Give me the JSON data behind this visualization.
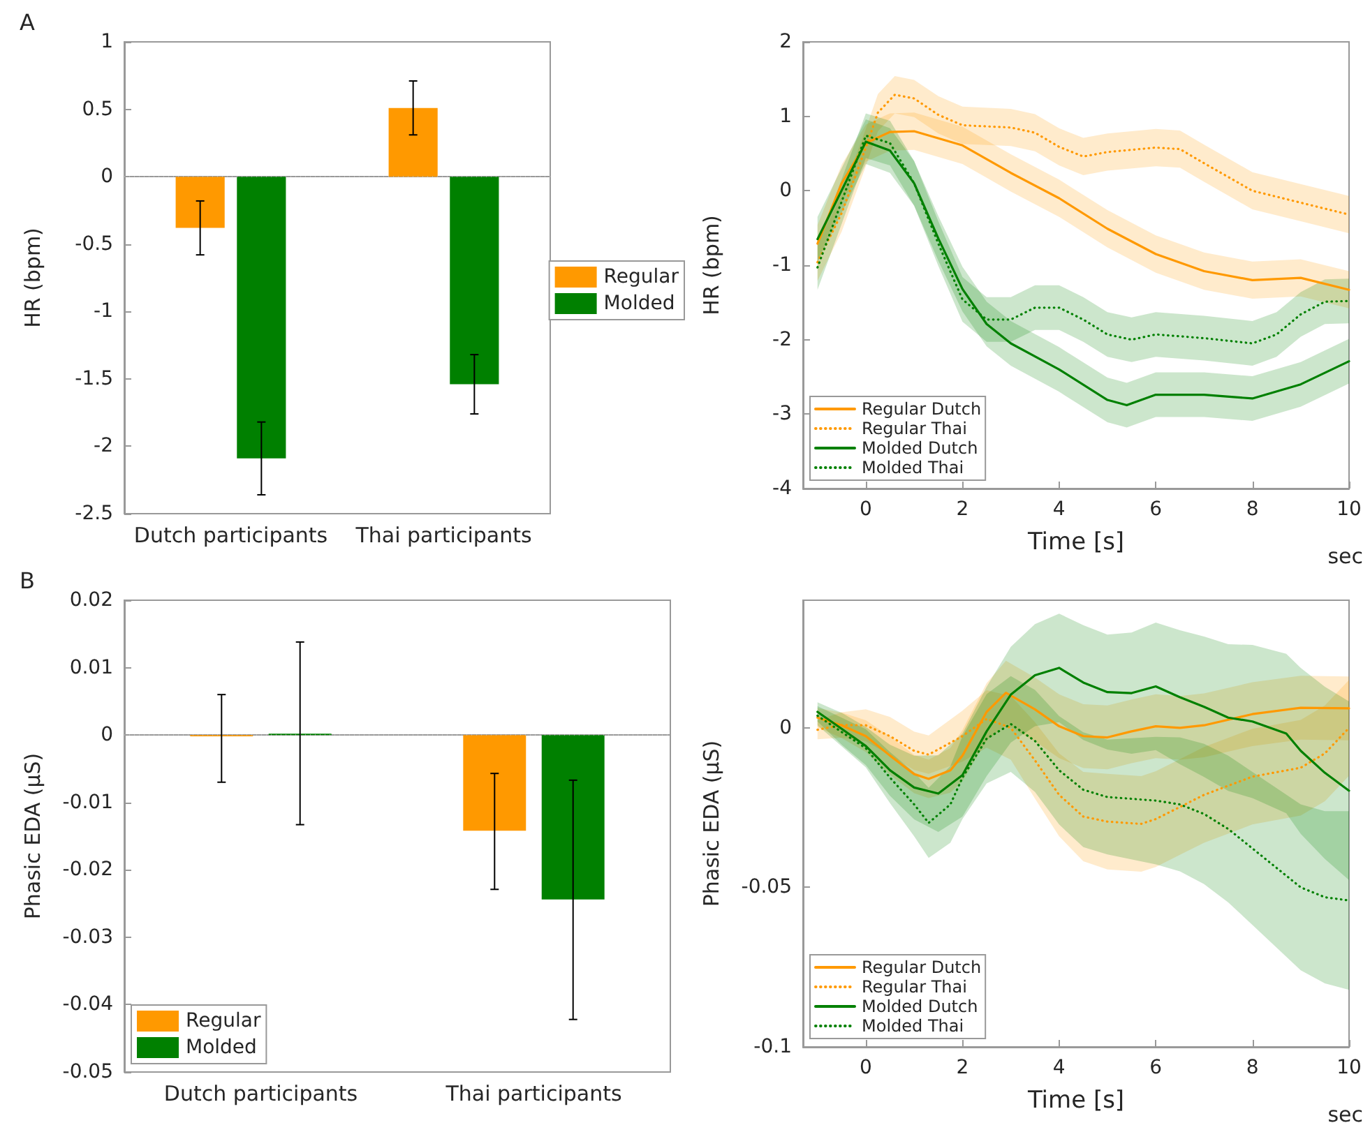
{
  "chart_data": [
    {
      "type": "bar",
      "ylabel": "HR (bpm)",
      "annotations": [
        "A"
      ],
      "categories": [
        "Dutch participants",
        "Thai participants"
      ],
      "series": [
        {
          "name": "Regular",
          "color": "#ff9900",
          "values": [
            -0.38,
            0.51
          ],
          "errors": [
            0.2,
            0.2
          ]
        },
        {
          "name": "Molded",
          "color": "#008000",
          "values": [
            -2.09,
            -1.54
          ],
          "errors": [
            0.27,
            0.22
          ]
        }
      ],
      "ylim": [
        -2.5,
        1
      ],
      "yticks": [
        -2.5,
        -2,
        -1.5,
        -1,
        -0.5,
        0,
        0.5,
        1
      ],
      "legend": "right",
      "ref_lines": [
        {
          "axis": "y",
          "value": 0,
          "color": "#c8c8c8",
          "line_style": "dotted"
        }
      ]
    },
    {
      "type": "line",
      "xlabel": "Time [s]",
      "ylabel": "HR (bpm)",
      "annotations": [
        "sec"
      ],
      "series": [
        {
          "name": "Regular Dutch",
          "color": "#ff9900",
          "line_style": "solid",
          "x": [
            -1,
            -0.5,
            0,
            0.5,
            1,
            2,
            3,
            4,
            5,
            6,
            7,
            8,
            9,
            10
          ],
          "values": [
            -0.71,
            0.1,
            0.64,
            0.79,
            0.8,
            0.61,
            0.24,
            -0.1,
            -0.51,
            -0.85,
            -1.08,
            -1.2,
            -1.17,
            -1.33
          ],
          "lower": [
            -0.96,
            -0.15,
            0.39,
            0.54,
            0.55,
            0.36,
            -0.01,
            -0.35,
            -0.76,
            -1.1,
            -1.33,
            -1.45,
            -1.42,
            -1.58
          ],
          "upper": [
            -0.46,
            0.35,
            0.89,
            1.04,
            1.05,
            0.86,
            0.49,
            0.15,
            -0.26,
            -0.6,
            -0.83,
            -0.95,
            -0.92,
            -1.08
          ]
        },
        {
          "name": "Regular Thai",
          "color": "#ff9900",
          "line_style": "dotted",
          "x": [
            -1,
            -0.5,
            0,
            0.25,
            0.6,
            1,
            1.5,
            2,
            3,
            3.5,
            4,
            4.5,
            5,
            6,
            6.5,
            7,
            8,
            9,
            10
          ],
          "values": [
            -0.96,
            -0.3,
            0.58,
            1.05,
            1.29,
            1.24,
            1.02,
            0.88,
            0.85,
            0.78,
            0.59,
            0.46,
            0.52,
            0.58,
            0.56,
            0.37,
            0,
            -0.16,
            -0.32
          ],
          "lower": [
            -1.21,
            -0.55,
            0.33,
            0.8,
            1.04,
            0.99,
            0.77,
            0.63,
            0.6,
            0.53,
            0.34,
            0.21,
            0.27,
            0.33,
            0.31,
            0.12,
            -0.25,
            -0.41,
            -0.57
          ],
          "upper": [
            -0.71,
            -0.05,
            0.83,
            1.3,
            1.54,
            1.49,
            1.27,
            1.13,
            1.1,
            1.03,
            0.84,
            0.71,
            0.77,
            0.83,
            0.81,
            0.62,
            0.25,
            0.09,
            -0.07
          ]
        },
        {
          "name": "Molded Dutch",
          "color": "#008000",
          "line_style": "solid",
          "x": [
            -1,
            0,
            0.5,
            1,
            1.5,
            2,
            2.5,
            3,
            4,
            5,
            5.4,
            6,
            7,
            8,
            9,
            10
          ],
          "values": [
            -0.65,
            0.66,
            0.54,
            0.1,
            -0.64,
            -1.32,
            -1.79,
            -2.05,
            -2.4,
            -2.81,
            -2.88,
            -2.74,
            -2.74,
            -2.79,
            -2.6,
            -2.29
          ],
          "lower": [
            -0.95,
            0.36,
            0.24,
            -0.2,
            -0.94,
            -1.62,
            -2.09,
            -2.35,
            -2.7,
            -3.11,
            -3.18,
            -3.04,
            -3.04,
            -3.09,
            -2.9,
            -2.59
          ],
          "upper": [
            -0.35,
            0.96,
            0.84,
            0.4,
            -0.34,
            -1.02,
            -1.49,
            -1.75,
            -2.1,
            -2.51,
            -2.58,
            -2.44,
            -2.44,
            -2.49,
            -2.3,
            -1.99
          ]
        },
        {
          "name": "Molded Thai",
          "color": "#008000",
          "line_style": "dotted",
          "x": [
            -1,
            0,
            0.5,
            1,
            1.5,
            2,
            2.5,
            3,
            3.5,
            4,
            4.5,
            5,
            5.5,
            6,
            7,
            8,
            8.5,
            9,
            9.5,
            10
          ],
          "values": [
            -1.03,
            0.74,
            0.64,
            0.1,
            -0.71,
            -1.46,
            -1.73,
            -1.73,
            -1.57,
            -1.57,
            -1.73,
            -1.93,
            -2,
            -1.93,
            -1.98,
            -2.05,
            -1.93,
            -1.66,
            -1.49,
            -1.48
          ],
          "lower": [
            -1.33,
            0.44,
            0.34,
            -0.2,
            -1.01,
            -1.76,
            -2.03,
            -2.03,
            -1.87,
            -1.87,
            -2.03,
            -2.23,
            -2.3,
            -2.23,
            -2.28,
            -2.35,
            -2.23,
            -1.96,
            -1.79,
            -1.78
          ],
          "upper": [
            -0.73,
            1.04,
            0.94,
            0.4,
            -0.41,
            -1.16,
            -1.43,
            -1.43,
            -1.27,
            -1.27,
            -1.43,
            -1.63,
            -1.7,
            -1.63,
            -1.68,
            -1.75,
            -1.63,
            -1.36,
            -1.19,
            -1.18
          ]
        }
      ],
      "xlim": [
        -1.3,
        10
      ],
      "xticks": [
        0,
        2,
        4,
        6,
        8,
        10
      ],
      "ylim": [
        -4,
        2
      ],
      "yticks": [
        -4,
        -3,
        -2,
        -1,
        0,
        1,
        2
      ],
      "legend": "bottom left"
    },
    {
      "type": "bar",
      "ylabel": "Phasic EDA (μS)",
      "annotations": [
        "B"
      ],
      "categories": [
        "Dutch participants",
        "Thai participants"
      ],
      "series": [
        {
          "name": "Regular",
          "color": "#ff9900",
          "values": [
            -0.0002,
            -0.0142
          ],
          "errors": [
            [
              -0.007,
              0.006
            ],
            [
              -0.0229,
              -0.0057
            ]
          ]
        },
        {
          "name": "Molded",
          "color": "#008000",
          "values": [
            0.0002,
            -0.0244
          ],
          "errors": [
            [
              -0.0133,
              0.0138
            ],
            [
              -0.0422,
              -0.0067
            ]
          ]
        }
      ],
      "ylim": [
        -0.05,
        0.02
      ],
      "yticks": [
        -0.05,
        -0.04,
        -0.03,
        -0.02,
        -0.01,
        0,
        0.01,
        0.02
      ],
      "legend": "bottom left",
      "ref_lines": [
        {
          "axis": "y",
          "value": 0,
          "color": "#c8c8c8",
          "line_style": "dotted"
        }
      ]
    },
    {
      "type": "line",
      "xlabel": "Time [s]",
      "ylabel": "Phasic EDA (μS)",
      "annotations": [
        "sec"
      ],
      "series": [
        {
          "name": "Regular Dutch",
          "color": "#ff9900",
          "line_style": "solid",
          "x": [
            -1,
            -0.5,
            0,
            0.5,
            1,
            1.3,
            1.75,
            2,
            2.5,
            2.9,
            3.5,
            4,
            4.5,
            5,
            5.5,
            6,
            6.5,
            7,
            8,
            9,
            10
          ],
          "values": [
            0.0032,
            0.0008,
            -0.0026,
            -0.0087,
            -0.0145,
            -0.016,
            -0.0133,
            -0.0087,
            0.005,
            0.011,
            0.0058,
            0.0005,
            -0.0026,
            -0.003,
            -0.0011,
            0.0005,
            0,
            0.0008,
            0.0043,
            0.0063,
            0.0061
          ],
          "lower": [
            0.0002,
            -0.0032,
            -0.0076,
            -0.0147,
            -0.0205,
            -0.022,
            -0.0203,
            -0.0167,
            -0.004,
            0.001,
            -0.0042,
            -0.0095,
            -0.0126,
            -0.013,
            -0.0111,
            -0.0095,
            -0.01,
            -0.0092,
            -0.0057,
            -0.0037,
            -0.0039
          ],
          "upper": [
            0.0062,
            0.0048,
            0.0024,
            -0.0027,
            -0.0085,
            -0.01,
            -0.0063,
            -0.0007,
            0.014,
            0.021,
            0.0158,
            0.0105,
            0.0074,
            0.007,
            0.0089,
            0.0105,
            0.01,
            0.0108,
            0.0143,
            0.0163,
            0.0161
          ]
        },
        {
          "name": "Regular Thai",
          "color": "#ff9900",
          "line_style": "dotted",
          "x": [
            -1,
            -0.5,
            0,
            0.5,
            1,
            1.3,
            2,
            2.5,
            3,
            3.5,
            4,
            4.5,
            5,
            5.7,
            6,
            6.5,
            7,
            8,
            9,
            9.5,
            10
          ],
          "values": [
            -0.0006,
            0.0009,
            0.0008,
            -0.0026,
            -0.0072,
            -0.0084,
            -0.0026,
            0.0028,
            0,
            -0.0102,
            -0.021,
            -0.0278,
            -0.0294,
            -0.0301,
            -0.0286,
            -0.0248,
            -0.021,
            -0.0153,
            -0.0125,
            -0.008,
            0
          ],
          "lower": [
            -0.0036,
            -0.0031,
            -0.0042,
            -0.0086,
            -0.0132,
            -0.0144,
            -0.0106,
            -0.0062,
            -0.01,
            -0.0222,
            -0.034,
            -0.0418,
            -0.0444,
            -0.0451,
            -0.0436,
            -0.0398,
            -0.036,
            -0.0303,
            -0.0275,
            -0.023,
            -0.015
          ],
          "upper": [
            0.0024,
            0.0049,
            0.0058,
            0.0034,
            -0.0012,
            -0.0024,
            0.0054,
            0.0118,
            0.01,
            0.0018,
            -0.008,
            -0.0138,
            -0.0144,
            -0.0151,
            -0.0136,
            -0.0098,
            -0.006,
            -0.0003,
            0.0025,
            0.007,
            0.015
          ]
        },
        {
          "name": "Molded Dutch",
          "color": "#008000",
          "line_style": "solid",
          "x": [
            -1,
            -0.5,
            0,
            0.5,
            1,
            1.5,
            2,
            2.5,
            3,
            3.5,
            4,
            4.5,
            5,
            5.5,
            6,
            6.5,
            7,
            7.5,
            8,
            8.7,
            9,
            9.5,
            10
          ],
          "values": [
            0.005,
            -0.0003,
            -0.0057,
            -0.0133,
            -0.0187,
            -0.0206,
            -0.0148,
            -0.0011,
            0.0104,
            0.0165,
            0.0188,
            0.0142,
            0.0112,
            0.0109,
            0.013,
            0.0096,
            0.0066,
            0.0032,
            0.002,
            -0.0018,
            -0.0072,
            -0.0141,
            -0.0197
          ],
          "lower": [
            0.002,
            -0.0053,
            -0.0117,
            -0.0213,
            -0.0287,
            -0.0326,
            -0.0278,
            -0.0151,
            -0.0046,
            0.0005,
            0.0018,
            -0.0038,
            -0.0068,
            -0.0081,
            -0.007,
            -0.0114,
            -0.0154,
            -0.0198,
            -0.022,
            -0.0268,
            -0.0332,
            -0.0411,
            -0.0477
          ],
          "upper": [
            0.008,
            0.0047,
            0.0003,
            -0.0053,
            -0.0087,
            -0.0086,
            -0.0018,
            0.0129,
            0.0254,
            0.0325,
            0.0358,
            0.0322,
            0.0292,
            0.0299,
            0.033,
            0.0306,
            0.0286,
            0.0262,
            0.026,
            0.0232,
            0.0188,
            0.0129,
            0.0083
          ]
        },
        {
          "name": "Molded Thai",
          "color": "#008000",
          "line_style": "dotted",
          "x": [
            -1,
            0,
            0.5,
            1,
            1.3,
            1.75,
            2,
            2.5,
            3,
            3.5,
            4,
            4.5,
            5,
            6,
            6.5,
            7,
            7.5,
            8,
            8.5,
            9,
            9.5,
            10
          ],
          "values": [
            0.0038,
            -0.0064,
            -0.0156,
            -0.024,
            -0.0298,
            -0.024,
            -0.0156,
            -0.0034,
            0.0012,
            -0.0041,
            -0.0133,
            -0.0194,
            -0.0217,
            -0.0228,
            -0.024,
            -0.027,
            -0.0317,
            -0.0378,
            -0.0439,
            -0.05,
            -0.0531,
            -0.0541
          ],
          "lower": [
            0.0008,
            -0.0124,
            -0.0236,
            -0.034,
            -0.0408,
            -0.036,
            -0.0286,
            -0.0174,
            -0.0138,
            -0.0201,
            -0.0303,
            -0.0374,
            -0.0397,
            -0.0428,
            -0.045,
            -0.049,
            -0.0547,
            -0.0618,
            -0.0689,
            -0.076,
            -0.0801,
            -0.0821
          ],
          "upper": [
            0.0068,
            -0.0004,
            -0.0076,
            -0.014,
            -0.0188,
            -0.012,
            -0.0026,
            0.0106,
            0.0162,
            0.0119,
            0.0037,
            -0.0014,
            -0.0037,
            -0.0028,
            -0.003,
            -0.005,
            -0.0087,
            -0.0138,
            -0.0189,
            -0.024,
            -0.0261,
            -0.0261
          ]
        }
      ],
      "xlim": [
        -1.3,
        10
      ],
      "xticks": [
        0,
        2,
        4,
        6,
        8,
        10
      ],
      "ylim": [
        -0.1,
        0.04
      ],
      "yticks": [
        -0.1,
        -0.05,
        0
      ],
      "legend": "bottom left"
    }
  ]
}
